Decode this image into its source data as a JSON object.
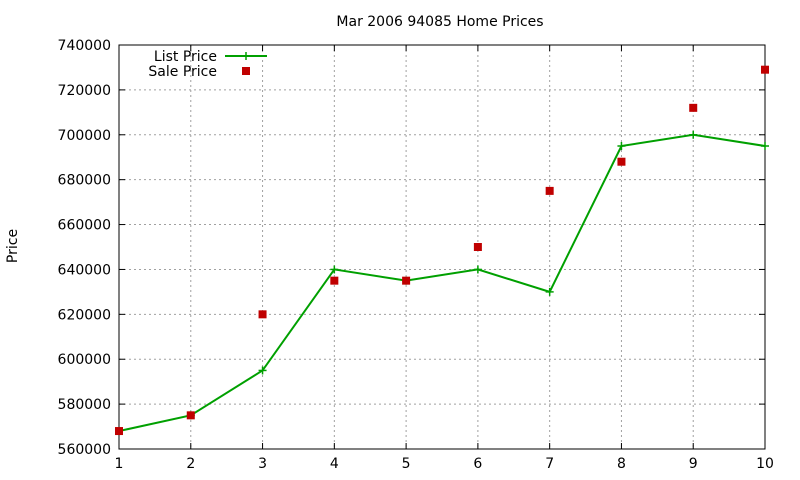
{
  "chart_data": {
    "type": "line",
    "title": "Mar 2006 94085 Home Prices",
    "xlabel": "",
    "ylabel": "Price",
    "xlim": [
      1,
      10
    ],
    "ylim": [
      560000,
      740000
    ],
    "x_ticks": [
      "1",
      "2",
      "3",
      "4",
      "5",
      "6",
      "7",
      "8",
      "9",
      "10"
    ],
    "y_ticks": [
      "560000",
      "580000",
      "600000",
      "620000",
      "640000",
      "660000",
      "680000",
      "700000",
      "720000",
      "740000"
    ],
    "grid": true,
    "legend_position": "top-left",
    "x": [
      1,
      2,
      3,
      4,
      5,
      6,
      7,
      8,
      9,
      10
    ],
    "series": [
      {
        "name": "List Price",
        "kind": "line+cross",
        "color": "#00a000",
        "values": [
          568000,
          575000,
          595000,
          640000,
          635000,
          640000,
          630000,
          695000,
          700000,
          695000
        ]
      },
      {
        "name": "Sale Price",
        "kind": "square",
        "color": "#c00000",
        "values": [
          568000,
          575000,
          620000,
          635000,
          635000,
          650000,
          675000,
          688000,
          712000,
          729000
        ]
      }
    ]
  }
}
